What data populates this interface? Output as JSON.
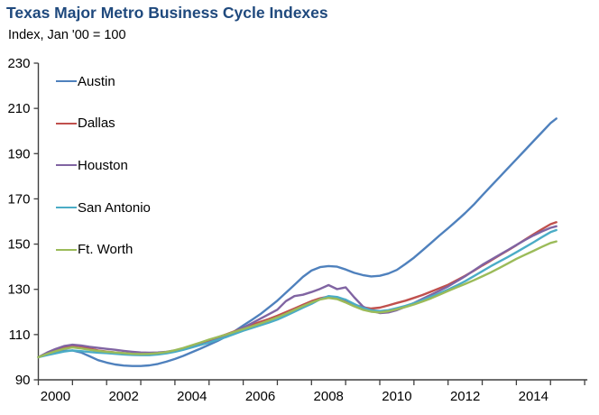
{
  "header": {
    "title": "Texas Major Metro Business Cycle Indexes",
    "subtitle": "Index, Jan '00 = 100"
  },
  "colors": {
    "title_text": "#1F497D",
    "axis": "#3f3f3f",
    "tick_text": "#000000"
  },
  "chart_data": {
    "type": "line",
    "title": "Texas Major Metro Business Cycle Indexes",
    "subtitle": "Index, Jan '00 = 100",
    "xlabel": "",
    "ylabel": "Index, Jan '00 = 100",
    "ylim": [
      90,
      230
    ],
    "y_ticks": [
      90,
      110,
      130,
      150,
      170,
      190,
      210,
      230
    ],
    "x_range": [
      2000,
      2016
    ],
    "x_ticks_years": [
      2000,
      2001,
      2002,
      2003,
      2004,
      2005,
      2006,
      2007,
      2008,
      2009,
      2010,
      2011,
      2012,
      2013,
      2014,
      2015,
      2016
    ],
    "x_tick_labels": [
      "2000",
      "2002",
      "2004",
      "2006",
      "2008",
      "2010",
      "2012",
      "2014"
    ],
    "grid": false,
    "legend_position": "inside-top-left",
    "x": [
      2000,
      2000.25,
      2000.5,
      2000.75,
      2001,
      2001.25,
      2001.5,
      2001.75,
      2002,
      2002.25,
      2002.5,
      2002.75,
      2003,
      2003.25,
      2003.5,
      2003.75,
      2004,
      2004.25,
      2004.5,
      2004.75,
      2005,
      2005.25,
      2005.5,
      2005.75,
      2006,
      2006.25,
      2006.5,
      2006.75,
      2007,
      2007.25,
      2007.5,
      2007.75,
      2008,
      2008.25,
      2008.5,
      2008.75,
      2009,
      2009.25,
      2009.5,
      2009.75,
      2010,
      2010.25,
      2010.5,
      2010.75,
      2011,
      2011.25,
      2011.5,
      2011.75,
      2012,
      2012.25,
      2012.5,
      2012.75,
      2013,
      2013.25,
      2013.5,
      2013.75,
      2014,
      2014.25,
      2014.5,
      2014.75,
      2015,
      2015.17
    ],
    "series": [
      {
        "name": "Austin",
        "color": "#4F81BD",
        "values": [
          100.0,
          101.2,
          102.0,
          102.8,
          103.0,
          102.1,
          100.4,
          98.7,
          97.6,
          96.8,
          96.3,
          96.1,
          96.1,
          96.4,
          97.0,
          98.0,
          99.2,
          100.6,
          102.2,
          103.8,
          105.5,
          107.2,
          109.2,
          111.5,
          114.0,
          116.5,
          119.0,
          122.0,
          125.0,
          128.5,
          132.0,
          135.5,
          138.3,
          139.8,
          140.3,
          140.0,
          138.8,
          137.3,
          136.3,
          135.7,
          136.0,
          137.0,
          138.6,
          141.2,
          144.0,
          147.2,
          150.5,
          153.8,
          157.0,
          160.3,
          163.7,
          167.4,
          171.5,
          175.5,
          179.5,
          183.5,
          187.5,
          191.5,
          195.5,
          199.5,
          203.5,
          205.5
        ]
      },
      {
        "name": "Dallas",
        "color": "#C0504D",
        "values": [
          100.0,
          101.8,
          103.2,
          104.5,
          105.2,
          104.8,
          103.8,
          103.0,
          102.5,
          102.1,
          101.8,
          101.5,
          101.3,
          101.3,
          101.6,
          102.1,
          102.9,
          103.9,
          105.0,
          106.2,
          107.5,
          108.8,
          110.1,
          111.5,
          113.0,
          114.3,
          115.6,
          116.9,
          118.3,
          119.9,
          121.5,
          123.2,
          124.8,
          126.0,
          126.8,
          126.3,
          124.8,
          123.3,
          122.1,
          121.5,
          121.9,
          122.9,
          124.0,
          125.0,
          126.2,
          127.5,
          129.0,
          130.5,
          132.0,
          134.0,
          136.0,
          138.2,
          140.5,
          142.7,
          145.0,
          147.2,
          149.5,
          152.0,
          154.3,
          156.6,
          158.8,
          159.7
        ]
      },
      {
        "name": "Houston",
        "color": "#8064A2",
        "values": [
          100.0,
          102.0,
          103.6,
          104.9,
          105.5,
          105.2,
          104.6,
          104.1,
          103.7,
          103.3,
          102.8,
          102.4,
          102.1,
          102.0,
          102.1,
          102.4,
          103.0,
          103.7,
          104.6,
          105.5,
          106.6,
          108.0,
          109.6,
          111.2,
          113.0,
          115.0,
          117.0,
          119.0,
          121.0,
          124.8,
          127.0,
          127.6,
          128.8,
          130.2,
          131.9,
          130.1,
          130.9,
          126.5,
          122.5,
          120.5,
          119.5,
          119.8,
          120.8,
          122.3,
          124.0,
          125.8,
          127.6,
          129.4,
          131.3,
          133.5,
          135.8,
          138.3,
          140.8,
          143.0,
          145.2,
          147.4,
          149.6,
          151.8,
          153.8,
          155.6,
          157.2,
          157.9
        ]
      },
      {
        "name": "San Antonio",
        "color": "#4BACC6",
        "values": [
          100.0,
          100.9,
          101.7,
          102.5,
          103.0,
          102.7,
          102.3,
          102.0,
          101.8,
          101.5,
          101.2,
          101.0,
          100.9,
          100.9,
          101.2,
          101.7,
          102.4,
          103.3,
          104.3,
          105.4,
          106.5,
          107.7,
          108.9,
          110.3,
          111.7,
          112.9,
          114.1,
          115.3,
          116.6,
          118.3,
          120.1,
          121.9,
          123.6,
          125.6,
          127.0,
          126.6,
          125.4,
          123.5,
          121.8,
          120.8,
          120.4,
          120.8,
          121.7,
          122.7,
          123.9,
          125.3,
          126.8,
          128.3,
          129.9,
          131.7,
          133.6,
          135.8,
          138.0,
          140.2,
          142.3,
          144.3,
          146.4,
          148.6,
          150.8,
          153.1,
          155.3,
          156.2
        ]
      },
      {
        "name": "Ft. Worth",
        "color": "#9BBB59",
        "values": [
          100.0,
          101.4,
          102.6,
          103.7,
          104.3,
          103.9,
          103.3,
          102.8,
          102.4,
          102.1,
          101.8,
          101.5,
          101.4,
          101.5,
          101.8,
          102.3,
          103.1,
          104.1,
          105.3,
          106.5,
          107.8,
          108.9,
          110.0,
          111.2,
          112.4,
          113.6,
          114.9,
          116.2,
          117.6,
          119.2,
          120.9,
          122.6,
          124.2,
          125.5,
          126.2,
          125.7,
          124.2,
          122.5,
          121.0,
          120.1,
          119.8,
          120.3,
          121.2,
          122.2,
          123.3,
          124.6,
          126.0,
          127.6,
          129.3,
          130.9,
          132.4,
          134.0,
          135.7,
          137.5,
          139.4,
          141.4,
          143.5,
          145.3,
          147.0,
          148.8,
          150.5,
          151.2
        ]
      }
    ]
  }
}
